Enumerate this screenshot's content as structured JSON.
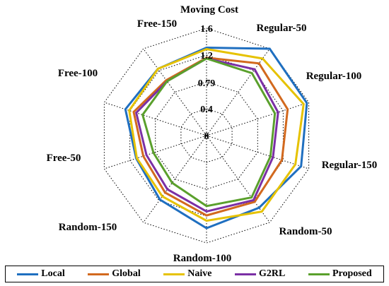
{
  "chart_data": {
    "type": "radar",
    "title": "",
    "axes": [
      "Moving Cost",
      "Regular-50",
      "Regular-100",
      "Regular-150",
      "Random-50",
      "Random-100",
      "Random-150",
      "Free-50",
      "Free-100",
      "Free-150"
    ],
    "rings": [
      "0",
      "0.4",
      "0.79",
      "1.2",
      "1.6"
    ],
    "ring_values": [
      0,
      0.4,
      0.79,
      1.2,
      1.6
    ],
    "rmax": 1.6,
    "grid": true,
    "legend_position": "bottom",
    "series": [
      {
        "name": "Local",
        "color": "#1f6fc0",
        "values": [
          1.31,
          1.6,
          1.57,
          1.48,
          1.33,
          1.38,
          1.18,
          1.1,
          1.27,
          1.23
        ]
      },
      {
        "name": "Global",
        "color": "#d2691e",
        "values": [
          1.16,
          1.33,
          1.27,
          1.18,
          1.22,
          1.19,
          1.05,
          0.99,
          1.14,
          1.02
        ]
      },
      {
        "name": "Naive",
        "color": "#e6c200",
        "values": [
          1.29,
          1.42,
          1.52,
          1.39,
          1.4,
          1.27,
          1.12,
          1.09,
          1.21,
          1.23
        ]
      },
      {
        "name": "G2RL",
        "color": "#7b2fa5",
        "values": [
          1.15,
          1.22,
          1.12,
          1.04,
          1.19,
          1.13,
          0.99,
          0.94,
          1.1,
          1.0
        ]
      },
      {
        "name": "Proposed",
        "color": "#5aa02c",
        "values": [
          1.15,
          1.15,
          1.07,
          1.0,
          1.14,
          1.05,
          0.87,
          0.83,
          1.0,
          1.0
        ]
      }
    ]
  }
}
